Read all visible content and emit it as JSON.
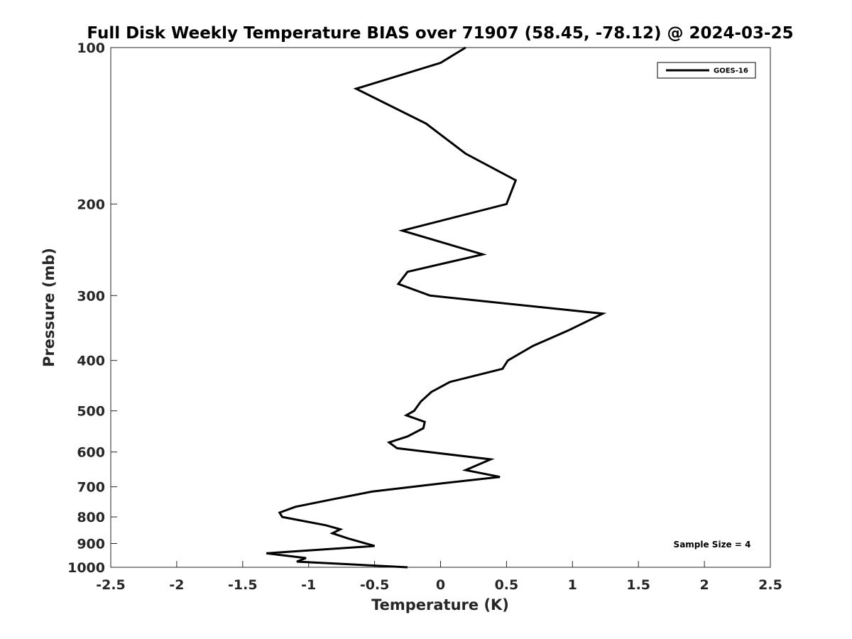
{
  "chart_data": {
    "type": "line",
    "title": "Full Disk Weekly Temperature BIAS over 71907 (58.45, -78.12) @ 2024-03-25",
    "xlabel": "Temperature (K)",
    "ylabel": "Pressure (mb)",
    "xlim": [
      -2.5,
      2.5
    ],
    "ylim": [
      1000,
      100
    ],
    "yscale": "log",
    "x_ticks": [
      -2.5,
      -2,
      -1.5,
      -1,
      -0.5,
      0,
      0.5,
      1,
      1.5,
      2,
      2.5
    ],
    "x_tick_labels": [
      "-2.5",
      "-2",
      "-1.5",
      "-1",
      "-0.5",
      "0",
      "0.5",
      "1",
      "1.5",
      "2",
      "2.5"
    ],
    "y_ticks": [
      100,
      200,
      300,
      400,
      500,
      600,
      700,
      800,
      900,
      1000
    ],
    "y_tick_labels": [
      "100",
      "200",
      "300",
      "400",
      "500",
      "600",
      "700",
      "800",
      "900",
      "1000"
    ],
    "grid": false,
    "legend_position": "top-right",
    "annotation": "Sample Size = 4",
    "series": [
      {
        "name": "GOES-16",
        "color": "#000000",
        "points": [
          [
            0.19,
            100
          ],
          [
            0.0,
            107
          ],
          [
            -0.64,
            120
          ],
          [
            -0.11,
            140
          ],
          [
            0.19,
            160
          ],
          [
            0.57,
            180
          ],
          [
            0.5,
            200
          ],
          [
            -0.29,
            225
          ],
          [
            0.32,
            250
          ],
          [
            -0.25,
            270
          ],
          [
            -0.32,
            285
          ],
          [
            -0.08,
            300
          ],
          [
            1.23,
            325
          ],
          [
            0.97,
            350
          ],
          [
            0.7,
            375
          ],
          [
            0.51,
            400
          ],
          [
            0.47,
            415
          ],
          [
            0.07,
            440
          ],
          [
            -0.07,
            460
          ],
          [
            -0.15,
            480
          ],
          [
            -0.2,
            500
          ],
          [
            -0.26,
            510
          ],
          [
            -0.12,
            525
          ],
          [
            -0.13,
            540
          ],
          [
            -0.25,
            560
          ],
          [
            -0.39,
            575
          ],
          [
            -0.33,
            590
          ],
          [
            0.38,
            620
          ],
          [
            0.19,
            650
          ],
          [
            0.45,
            670
          ],
          [
            0.0,
            690
          ],
          [
            -0.52,
            715
          ],
          [
            -0.82,
            740
          ],
          [
            -1.1,
            765
          ],
          [
            -1.22,
            785
          ],
          [
            -1.2,
            800
          ],
          [
            -0.87,
            830
          ],
          [
            -0.76,
            845
          ],
          [
            -0.82,
            860
          ],
          [
            -0.7,
            880
          ],
          [
            -0.5,
            910
          ],
          [
            -1.32,
            940
          ],
          [
            -1.02,
            960
          ],
          [
            -1.09,
            975
          ],
          [
            -0.25,
            1000
          ]
        ]
      }
    ]
  }
}
